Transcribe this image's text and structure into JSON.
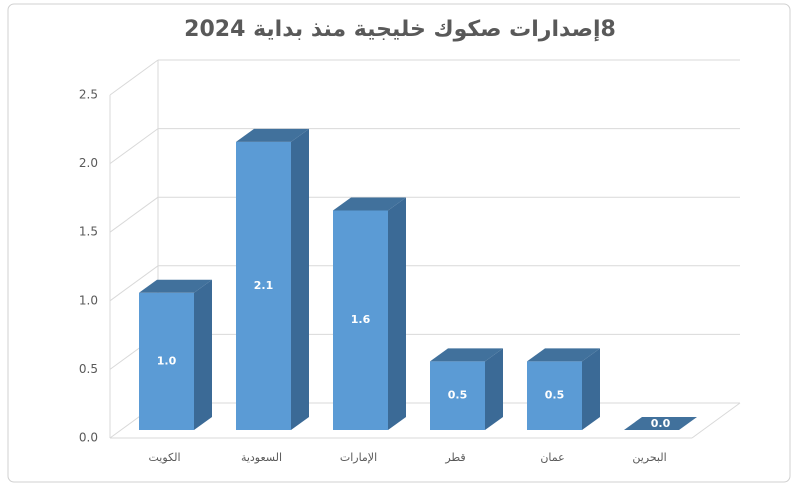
{
  "chart_data": {
    "type": "bar3d",
    "title": "8إصدارات صكوك خليجية منذ بداية 2024",
    "categories": [
      "الكويت",
      "السعودية",
      "الإمارات",
      "قطر",
      "عمان",
      "البحرين"
    ],
    "values": [
      1.0,
      2.1,
      1.6,
      0.5,
      0.5,
      0.0
    ],
    "value_labels": [
      "1.0",
      "2.1",
      "1.6",
      "0.5",
      "0.5",
      "0.0"
    ],
    "color": "#5b9bd5",
    "ylim": [
      0,
      2.5
    ],
    "yticks": [
      {
        "value": 0,
        "label": "0.0"
      },
      0.5,
      {
        "value": 1,
        "label": "1.0"
      },
      1.5,
      {
        "value": 2,
        "label": "2.0"
      },
      2.5
    ],
    "grid": true
  }
}
